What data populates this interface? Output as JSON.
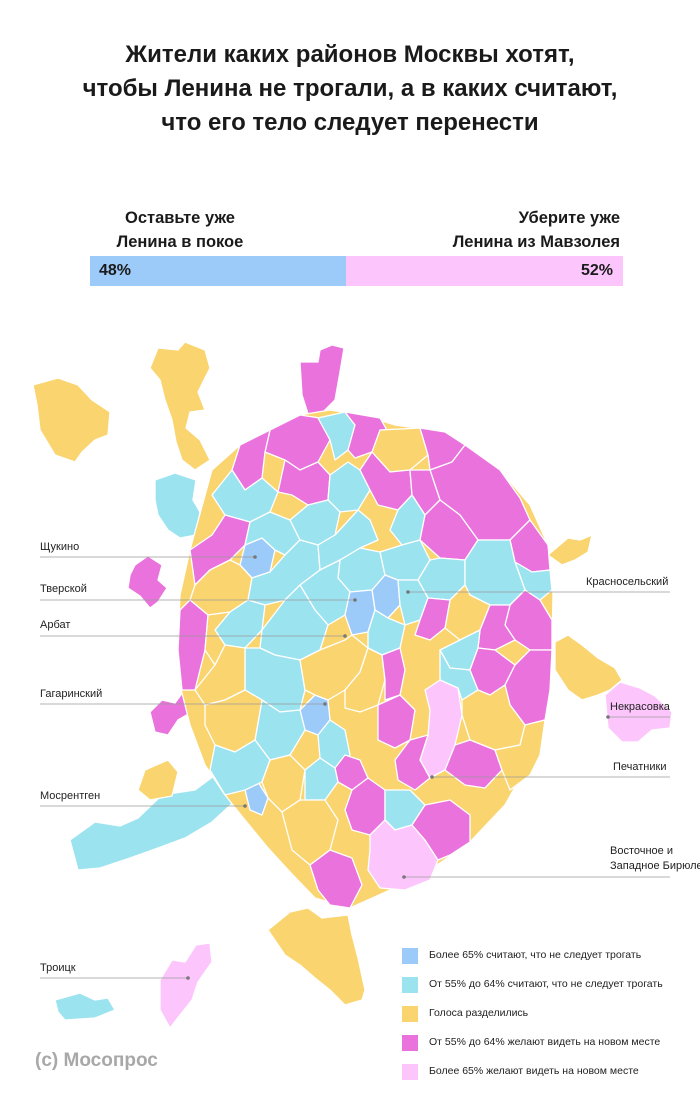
{
  "title": {
    "line1": "Жители каких районов Москвы хотят,",
    "line2": "чтобы Ленина не трогали, а в каких считают,",
    "line3": "что его тело следует перенести"
  },
  "poll": {
    "left_label_line1": "Оставьте уже",
    "left_label_line2": "Ленина в покое",
    "left_value": "48%",
    "left_fraction": 0.48,
    "right_label_line1": "Уберите уже",
    "right_label_line2": "Ленина из Мавзолея",
    "right_value": "52%",
    "right_fraction": 0.52
  },
  "colors": {
    "strong_keep": "#9dcbf9",
    "keep": "#9ce3f0",
    "split": "#fad46e",
    "move": "#ea72dc",
    "strong_move": "#fcc6fc"
  },
  "callouts": {
    "shchukino": "Щукино",
    "tverskoy": "Тверской",
    "arbat": "Арбат",
    "gagarinsky": "Гагаринский",
    "mosrentgen": "Мосрентген",
    "troitsk": "Троицк",
    "krasnoselsky": "Красносельский",
    "nekrasovka": "Некрасовка",
    "pechatniki": "Печатники",
    "biryulevo_line1": "Восточное и",
    "biryulevo_line2": "Западное Бирюлево"
  },
  "legend": [
    {
      "label": "Более 65% считают, что не следует трогать",
      "color": "#9dcbf9"
    },
    {
      "label": "От 55% до 64% считают, что не следует трогать",
      "color": "#9ce3f0"
    },
    {
      "label": "Голоса разделились",
      "color": "#fad46e"
    },
    {
      "label": "От 55% до 64% желают видеть на новом месте",
      "color": "#ea72dc"
    },
    {
      "label": "Более 65% желают видеть на новом месте",
      "color": "#fcc6fc"
    }
  ],
  "copyright": "(c) Мосопрос"
}
